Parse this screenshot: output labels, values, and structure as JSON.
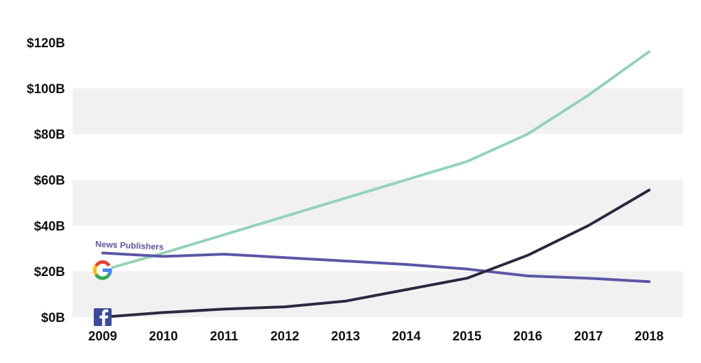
{
  "chart_data": {
    "type": "line",
    "x": [
      "2009",
      "2010",
      "2011",
      "2012",
      "2013",
      "2014",
      "2015",
      "2016",
      "2017",
      "2018"
    ],
    "ylim": [
      0,
      120
    ],
    "yticks": [
      0,
      20,
      40,
      60,
      80,
      100,
      120
    ],
    "ytick_labels": [
      "$0B",
      "$20B",
      "$40B",
      "$60B",
      "$80B",
      "$100B",
      "$120B"
    ],
    "grid": "alternating horizontal bands",
    "series": [
      {
        "icon": "google-logo-icon",
        "color": "#93d3b6",
        "values": [
          20.5,
          28,
          36,
          44,
          52,
          60,
          68,
          80,
          97,
          116
        ]
      },
      {
        "name": "News Publishers",
        "color": "#5b57a5",
        "values": [
          28,
          26.5,
          27.5,
          26,
          24.5,
          23,
          21,
          18,
          17,
          15.5
        ]
      },
      {
        "icon": "facebook-logo-icon",
        "color": "#2a2940",
        "values": [
          0,
          2,
          3.5,
          4.5,
          7,
          12,
          17,
          27,
          40,
          55.5
        ]
      }
    ]
  }
}
